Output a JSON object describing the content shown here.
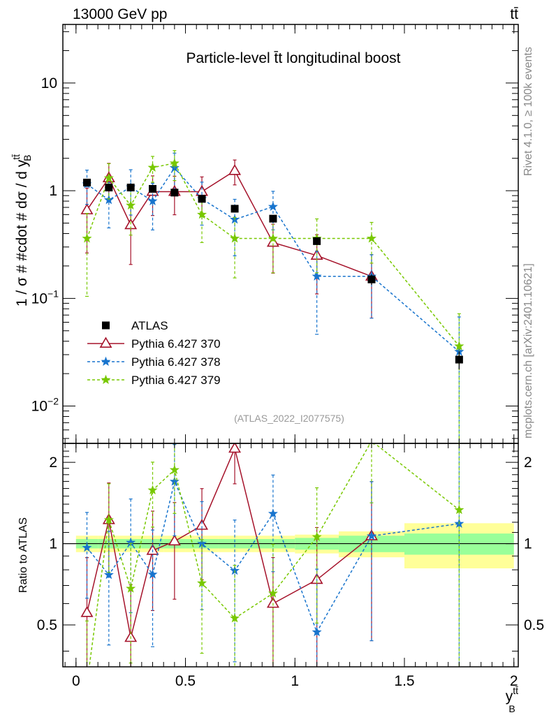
{
  "header": {
    "left": "13000 GeV pp",
    "right": "tt̄"
  },
  "side_labels": {
    "rivet": "Rivet 4.1.0, ≥ 100k events",
    "source": "mcplots.cern.ch [arXiv:2401.10621]"
  },
  "chart_data": {
    "type": "line",
    "title": "Particle-level t̄t longitudinal boost",
    "analysis_tag": "(ATLAS_2022_I2077575)",
    "xlabel": "y_B^{tt̄}",
    "xlabel_main": "y",
    "xlabel_sup": "tt̄",
    "xlabel_sub": "B",
    "ylabel": "1 / σ # #cdot # dσ / d y_B^{tt̄}",
    "ylabel_main": "1 / σ # #cdot # dσ / d y",
    "ylabel_sup": "tt̄",
    "ylabel_sub": "B",
    "ratio_ylabel": "Ratio to ATLAS",
    "xlim": [
      -0.06,
      2.02
    ],
    "ylim": [
      0.0045,
      35
    ],
    "yscale": "log",
    "ratio_ylim": [
      0.35,
      2.35
    ],
    "x_ticks": [
      0,
      0.5,
      1,
      1.5,
      2
    ],
    "x_tick_labels": [
      "0",
      "0.5",
      "1",
      "1.5",
      "2"
    ],
    "y_ticks": [
      {
        "value": 10,
        "base": "10",
        "exp": ""
      },
      {
        "value": 1,
        "base": "1",
        "exp": ""
      },
      {
        "value": 0.1,
        "base": "10",
        "exp": "−1"
      },
      {
        "value": 0.01,
        "base": "10",
        "exp": "−2"
      }
    ],
    "ratio_ticks": [
      2,
      1,
      0.5
    ],
    "ratio_tick_labels": [
      "2",
      "1",
      "0.5"
    ],
    "bins": [
      {
        "lo": 0.0,
        "hi": 0.1,
        "x": 0.05
      },
      {
        "lo": 0.1,
        "hi": 0.2,
        "x": 0.15
      },
      {
        "lo": 0.2,
        "hi": 0.3,
        "x": 0.25
      },
      {
        "lo": 0.3,
        "hi": 0.4,
        "x": 0.35
      },
      {
        "lo": 0.4,
        "hi": 0.5,
        "x": 0.45
      },
      {
        "lo": 0.5,
        "hi": 0.65,
        "x": 0.575
      },
      {
        "lo": 0.65,
        "hi": 0.8,
        "x": 0.725
      },
      {
        "lo": 0.8,
        "hi": 1.0,
        "x": 0.9
      },
      {
        "lo": 1.0,
        "hi": 1.2,
        "x": 1.1
      },
      {
        "lo": 1.2,
        "hi": 1.5,
        "x": 1.35
      },
      {
        "lo": 1.5,
        "hi": 2.0,
        "x": 1.75
      }
    ],
    "atlas_band": {
      "stat_rel": [
        0.04,
        0.04,
        0.04,
        0.04,
        0.04,
        0.04,
        0.04,
        0.04,
        0.05,
        0.07,
        0.09
      ],
      "total_rel": [
        0.07,
        0.07,
        0.07,
        0.07,
        0.07,
        0.07,
        0.07,
        0.07,
        0.08,
        0.11,
        0.19
      ]
    },
    "series": [
      {
        "name": "ATLAS",
        "style": "data",
        "color": "#000000",
        "values": [
          1.19,
          1.07,
          1.07,
          1.04,
          0.96,
          0.84,
          0.68,
          0.55,
          0.34,
          0.15,
          0.027
        ]
      },
      {
        "name": "Pythia 6.427 370",
        "style": "solid",
        "marker": "triangle",
        "color": "#a5122a",
        "values": [
          0.66,
          1.31,
          0.48,
          0.98,
          0.98,
          0.98,
          1.53,
          0.33,
          0.25,
          0.16,
          null
        ],
        "err_rel": [
          0.6,
          0.37,
          0.57,
          0.4,
          0.39,
          0.37,
          0.26,
          0.48,
          0.56,
          0.59,
          null
        ]
      },
      {
        "name": "Pythia 6.427 378",
        "style": "dashed",
        "marker": "star",
        "color": "#1874cd",
        "values": [
          1.15,
          0.82,
          1.08,
          0.8,
          1.63,
          0.84,
          0.54,
          0.71,
          0.16,
          0.16,
          0.032
        ],
        "err_rel": [
          0.35,
          0.45,
          0.45,
          0.46,
          0.37,
          0.43,
          0.54,
          0.39,
          0.71,
          0.59,
          1.1
        ]
      },
      {
        "name": "Pythia 6.427 379",
        "style": "dashed",
        "marker": "star",
        "color": "#78c800",
        "values": [
          0.36,
          1.31,
          0.73,
          1.64,
          1.8,
          0.6,
          0.36,
          0.36,
          0.36,
          0.36,
          0.036
        ],
        "err_rel": [
          0.71,
          0.36,
          0.47,
          0.27,
          0.31,
          0.45,
          0.57,
          0.52,
          0.52,
          0.41,
          1.0
        ]
      }
    ]
  },
  "colors": {
    "band_total": "#ffff99",
    "band_stat": "#99ff99",
    "frame": "#000000",
    "side_text": "#888888"
  }
}
